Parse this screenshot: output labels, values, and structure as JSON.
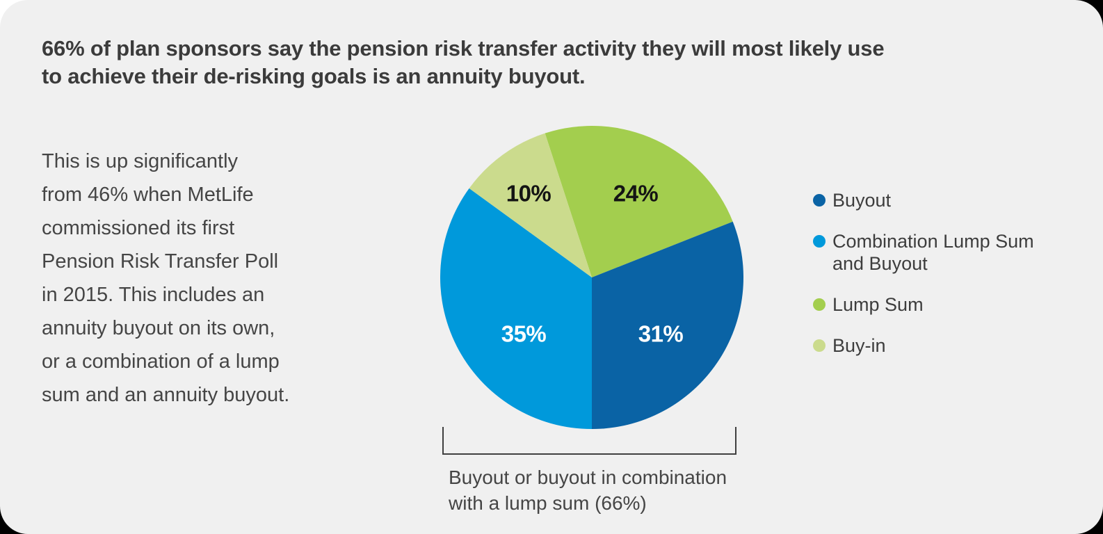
{
  "headline": {
    "lines": [
      "66% of plan sponsors say the pension risk transfer activity they will most likely use",
      "to achieve their de-risking goals is an annuity buyout."
    ]
  },
  "sidebar_text": {
    "lines": [
      "This is up significantly",
      "from 46% when MetLife",
      "commissioned its first",
      "Pension Risk Transfer Poll",
      "in 2015. This includes an",
      "annuity buyout on its own,",
      "or a combination of a lump",
      "sum and an annuity buyout."
    ]
  },
  "chart_data": {
    "type": "pie",
    "units": "percent",
    "start_angle_deg": -18,
    "direction": "clockwise",
    "slices": [
      {
        "label": "Lump Sum",
        "value": 24,
        "color": "#A3CE4E",
        "data_label": "24%",
        "data_label_color": "#141414"
      },
      {
        "label": "Buyout",
        "value": 31,
        "color": "#0A63A5",
        "data_label": "31%",
        "data_label_color": "#FFFFFF"
      },
      {
        "label": "Combination Lump Sum and Buyout",
        "value": 35,
        "color": "#0099DB",
        "data_label": "35%",
        "data_label_color": "#FFFFFF"
      },
      {
        "label": "Buy-in",
        "value": 10,
        "color": "#CBDB8D",
        "data_label": "10%",
        "data_label_color": "#141414"
      }
    ],
    "legend_position": "right",
    "legend": [
      {
        "label_lines": [
          "Buyout"
        ],
        "color": "#0A63A5"
      },
      {
        "label_lines": [
          "Combination Lump Sum",
          "and Buyout"
        ],
        "color": "#0099DB"
      },
      {
        "label_lines": [
          "Lump Sum"
        ],
        "color": "#A3CE4E"
      },
      {
        "label_lines": [
          "Buy-in"
        ],
        "color": "#CBDB8D"
      }
    ],
    "annotation": {
      "lines": [
        "Buyout or buyout in combination",
        "with a lump sum (66%)"
      ],
      "bracketed_total": "66%"
    }
  },
  "theme": {
    "page_background": "#000000",
    "page_corner_background": "#FFFFFF",
    "card_background": "#F0F0F0",
    "headline_color": "#3B3B3B",
    "body_text_color": "#454545",
    "legend_text_color": "#3D3D3D",
    "annotation_text_color": "#454545",
    "bracket_color": "#3F3F3F"
  }
}
